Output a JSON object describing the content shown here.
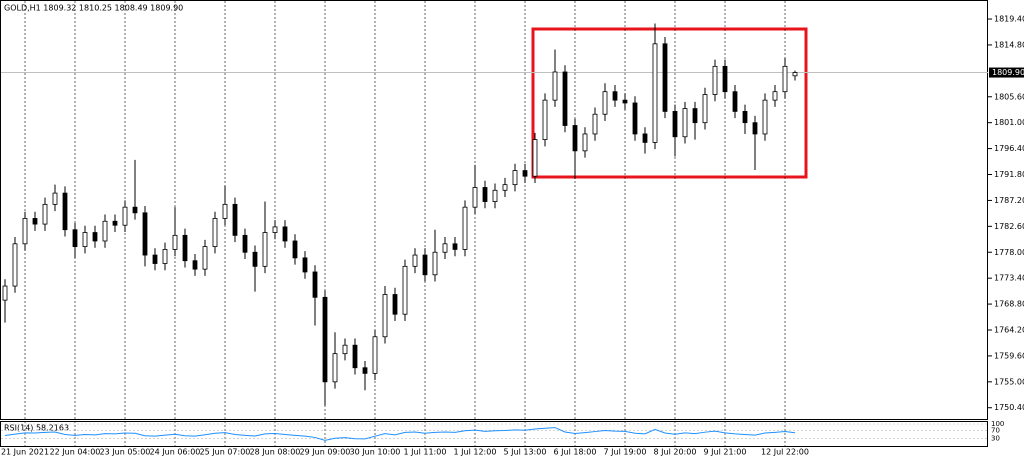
{
  "window": {
    "header": "GOLD,H1  1809.32 1810.25 1808.49 1809.90"
  },
  "chart_data": [
    {
      "type": "candlestick",
      "categories": [
        null,
        null,
        "21 Jun 2021",
        null,
        null,
        null,
        null,
        "22 Jun 04:00",
        null,
        null,
        null,
        null,
        "23 Jun 05:00",
        null,
        null,
        null,
        null,
        "24 Jun 06:00",
        null,
        null,
        null,
        null,
        "25 Jun 07:00",
        null,
        null,
        null,
        null,
        "28 Jun 08:00",
        null,
        null,
        null,
        null,
        "29 Jun 09:00",
        null,
        null,
        null,
        null,
        "30 Jun 10:00",
        null,
        null,
        null,
        null,
        "1 Jul 11:00",
        null,
        null,
        null,
        null,
        "1 Jul 12:00",
        null,
        null,
        null,
        null,
        "5 Jul 13:00",
        null,
        null,
        null,
        null,
        "6 Jul 18:00",
        null,
        null,
        null,
        null,
        "7 Jul 19:00",
        null,
        null,
        null,
        null,
        "8 Jul 20:00",
        null,
        null,
        null,
        null,
        "9 Jul 21:00",
        null,
        null,
        null,
        null,
        null,
        "12 Jul 22:00",
        null
      ],
      "open": [
        1769.5,
        1772.0,
        1779.5,
        1784.0,
        1783.0,
        1786.5,
        1788.5,
        1782.0,
        1779.0,
        1781.5,
        1780.0,
        1783.5,
        1782.8,
        1786.0,
        1785.0,
        1777.5,
        1776.0,
        1778.5,
        1781.0,
        1776.5,
        1775.0,
        1779.0,
        1784.0,
        1786.5,
        1781.0,
        1778.0,
        1775.5,
        1781.5,
        1782.5,
        1780.0,
        1777.0,
        1774.5,
        1770.0,
        1755.0,
        1760.0,
        1761.5,
        1757.5,
        1756.5,
        1763.0,
        1770.5,
        1767.0,
        1775.5,
        1777.5,
        1774.0,
        1778.0,
        1779.5,
        1778.5,
        1786.0,
        1789.5,
        1787.0,
        1789.0,
        1790.0,
        1792.5,
        1791.5,
        1798.0,
        1805.0,
        1810.0,
        1800.5,
        1796.0,
        1799.0,
        1802.5,
        1806.5,
        1805.0,
        1804.5,
        1799.0,
        1797.5,
        1815.0,
        1803.0,
        1798.5,
        1803.5,
        1801.0,
        1806.0,
        1811.0,
        1806.5,
        1803.0,
        1801.0,
        1799.0,
        1805.0,
        1806.5,
        1809.32
      ],
      "high": [
        1773.2,
        1780.7,
        1785.2,
        1785.2,
        1787.7,
        1790.0,
        1789.7,
        1783.2,
        1782.7,
        1782.7,
        1784.7,
        1784.7,
        1787.2,
        1794.4,
        1786.2,
        1778.7,
        1779.7,
        1786.0,
        1782.2,
        1777.7,
        1780.2,
        1785.2,
        1789.8,
        1787.7,
        1782.2,
        1779.2,
        1787.0,
        1783.7,
        1783.7,
        1781.2,
        1778.2,
        1775.7,
        1771.2,
        1763.8,
        1762.7,
        1762.7,
        1758.7,
        1764.2,
        1772.0,
        1771.7,
        1776.7,
        1778.7,
        1778.7,
        1782.0,
        1780.7,
        1780.7,
        1787.2,
        1793.5,
        1790.7,
        1790.2,
        1791.2,
        1793.7,
        1793.7,
        1799.2,
        1806.2,
        1814.0,
        1811.2,
        1801.7,
        1800.2,
        1803.7,
        1808.0,
        1807.7,
        1806.2,
        1805.7,
        1800.2,
        1818.6,
        1816.2,
        1804.2,
        1804.7,
        1804.7,
        1807.2,
        1812.2,
        1812.2,
        1807.7,
        1804.2,
        1802.2,
        1806.2,
        1807.7,
        1812.5,
        1810.25
      ],
      "low": [
        1765.5,
        1770.8,
        1778.3,
        1781.8,
        1781.8,
        1785.3,
        1780.8,
        1777.0,
        1777.8,
        1778.8,
        1778.8,
        1781.6,
        1781.6,
        1783.8,
        1775.5,
        1774.8,
        1774.8,
        1777.3,
        1775.3,
        1773.8,
        1773.8,
        1777.8,
        1782.8,
        1779.8,
        1776.8,
        1771.0,
        1774.3,
        1780.3,
        1778.8,
        1775.8,
        1773.3,
        1765.0,
        1750.8,
        1753.8,
        1758.8,
        1756.3,
        1753.5,
        1755.3,
        1761.8,
        1765.8,
        1765.8,
        1774.3,
        1772.8,
        1772.8,
        1776.8,
        1777.3,
        1777.3,
        1784.8,
        1785.8,
        1785.8,
        1787.8,
        1788.8,
        1790.3,
        1790.3,
        1796.8,
        1803.8,
        1799.3,
        1791.0,
        1794.8,
        1797.8,
        1801.3,
        1803.8,
        1803.3,
        1797.8,
        1795.5,
        1796.3,
        1801.8,
        1795.0,
        1797.3,
        1798.0,
        1799.8,
        1804.8,
        1805.3,
        1801.8,
        1799.0,
        1792.6,
        1797.8,
        1803.8,
        1805.3,
        1808.49
      ],
      "close": [
        1772.0,
        1779.5,
        1784.0,
        1783.0,
        1786.5,
        1788.5,
        1782.0,
        1779.0,
        1781.5,
        1780.0,
        1783.5,
        1782.8,
        1786.0,
        1785.0,
        1777.5,
        1776.0,
        1778.5,
        1781.0,
        1776.5,
        1775.0,
        1779.0,
        1784.0,
        1786.5,
        1781.0,
        1778.0,
        1775.5,
        1781.5,
        1782.5,
        1780.0,
        1777.0,
        1774.5,
        1770.0,
        1755.0,
        1760.0,
        1761.5,
        1757.5,
        1756.5,
        1763.0,
        1770.5,
        1767.0,
        1775.5,
        1777.5,
        1774.0,
        1778.0,
        1779.5,
        1778.5,
        1786.0,
        1789.5,
        1787.0,
        1789.0,
        1790.0,
        1792.5,
        1791.5,
        1798.0,
        1805.0,
        1810.0,
        1800.5,
        1796.0,
        1799.0,
        1802.5,
        1806.5,
        1805.0,
        1804.5,
        1799.0,
        1797.5,
        1815.0,
        1803.0,
        1798.5,
        1803.5,
        1801.0,
        1806.0,
        1811.0,
        1806.5,
        1803.0,
        1801.0,
        1799.0,
        1805.0,
        1806.5,
        1811.0,
        1809.9
      ],
      "color_up": "#ffffff",
      "color_down": "#000000",
      "ylim": [
        1748.4,
        1822.6
      ],
      "yticks": [
        {
          "value": 1819.4,
          "label": "1819.40"
        },
        {
          "value": 1814.8,
          "label": "1814.80"
        },
        {
          "value": 1805.6,
          "label": "1805.60"
        },
        {
          "value": 1801,
          "label": "1801.00"
        },
        {
          "value": 1796.4,
          "label": "1796.40"
        },
        {
          "value": 1791.8,
          "label": "1791.80"
        },
        {
          "value": 1787.2,
          "label": "1787.20"
        },
        {
          "value": 1782.6,
          "label": "1782.60"
        },
        {
          "value": 1778,
          "label": "1778.00"
        },
        {
          "value": 1773.4,
          "label": "1773.40"
        },
        {
          "value": 1768.8,
          "label": "1768.80"
        },
        {
          "value": 1764.2,
          "label": "1764.20"
        },
        {
          "value": 1759.6,
          "label": "1759.60"
        },
        {
          "value": 1755,
          "label": "1755.00"
        },
        {
          "value": 1750.4,
          "label": "1750.40"
        }
      ],
      "current_price": {
        "value": 1809.9,
        "label": "1809.90"
      },
      "grid": true
    },
    {
      "type": "line",
      "title": "RSI(14) 58.2163",
      "color": "#1e90ff",
      "values": [
        45,
        52,
        58,
        57,
        60,
        62,
        50,
        46,
        50,
        48,
        54,
        53,
        57,
        56,
        44,
        42,
        47,
        51,
        44,
        42,
        49,
        56,
        59,
        50,
        46,
        43,
        53,
        55,
        50,
        46,
        42,
        36,
        22,
        32,
        35,
        30,
        29,
        42,
        54,
        48,
        60,
        62,
        56,
        60,
        62,
        60,
        68,
        71,
        65,
        68,
        69,
        72,
        70,
        76,
        80,
        83,
        62,
        55,
        59,
        64,
        69,
        66,
        65,
        56,
        53,
        74,
        57,
        51,
        58,
        54,
        61,
        66,
        58,
        53,
        50,
        47,
        57,
        60,
        64,
        58.2163
      ],
      "ylim": [
        0,
        100
      ],
      "yticks": [
        100,
        70,
        30
      ]
    }
  ]
}
